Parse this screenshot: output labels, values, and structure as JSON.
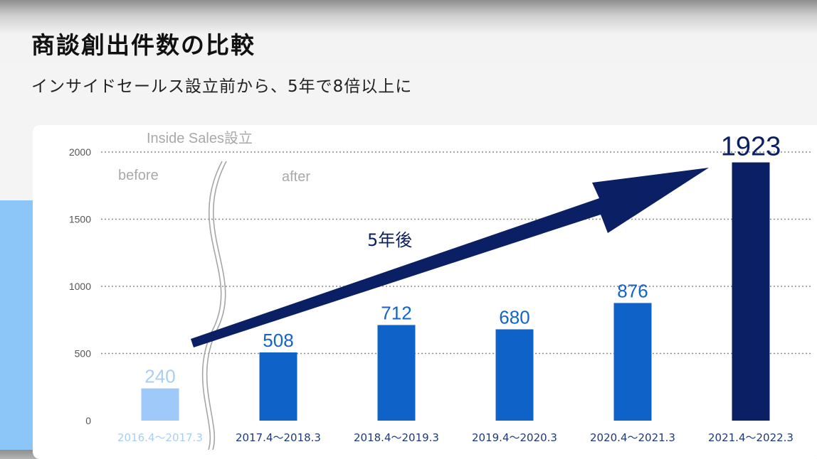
{
  "slide": {
    "title": "商談創出件数の比較",
    "subtitle": "インサイドセールス設立前から、5年で8倍以上に"
  },
  "colors": {
    "before_bar": "#9ec9f8",
    "before_text": "#a9cef3",
    "after_bar": "#0f63c8",
    "after_text": "#1264c8",
    "highlight_bar": "#0b1f64",
    "highlight_text": "#0b1f64",
    "annotation_text": "#a9a9a9",
    "axis_text": "#555555",
    "gridline": "#8a8a8a",
    "arrow": "#0b1f64"
  },
  "chart_data": {
    "type": "bar",
    "categories": [
      "2016.4～2017.3",
      "2017.4～2018.3",
      "2018.4～2019.3",
      "2019.4～2020.3",
      "2020.4～2021.3",
      "2021.4～2022.3"
    ],
    "values": [
      240,
      508,
      712,
      680,
      876,
      1923
    ],
    "data_labels": [
      "240",
      "508",
      "712",
      "680",
      "876",
      "1923"
    ],
    "yticks": [
      "0",
      "500",
      "1000",
      "1500",
      "2000"
    ],
    "ylim": [
      0,
      2000
    ],
    "grid": true,
    "xlabel": "",
    "ylabel": "",
    "annotations": {
      "divider_label": "Inside Sales設立",
      "before_label": "before",
      "after_label": "after",
      "arrow_label": "5年後"
    }
  }
}
